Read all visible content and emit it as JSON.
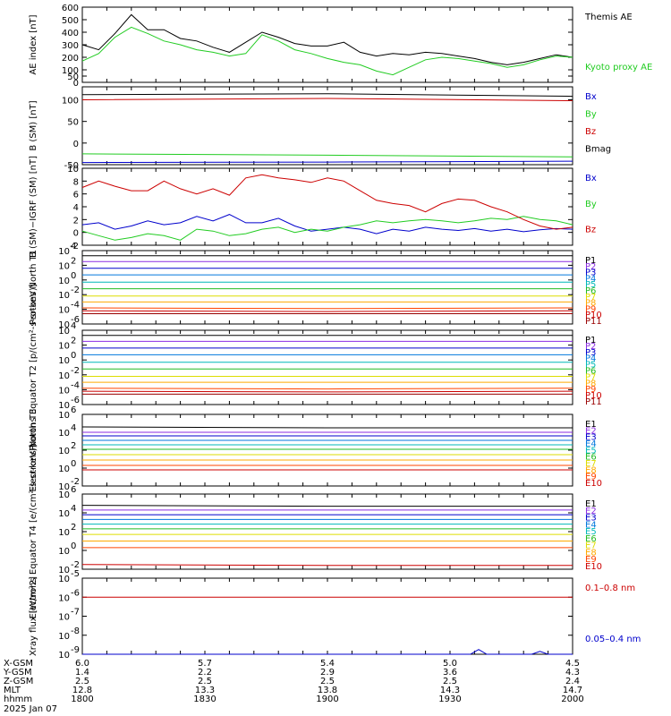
{
  "figure": {
    "date_label": "2025 Jan 07",
    "colors": {
      "black": "#000000",
      "blue": "#0000cc",
      "green": "#22cc22",
      "red": "#cc0000"
    }
  },
  "chart_data": [
    {
      "id": "ae",
      "type": "line",
      "ylabel": "AE index [nT]",
      "ylim": [
        0,
        600
      ],
      "yticks": [
        {
          "v": 0,
          "label": "0"
        },
        {
          "v": 50,
          "label": "50"
        },
        {
          "v": 100,
          "label": "100"
        },
        {
          "v": 200,
          "label": "200"
        },
        {
          "v": 300,
          "label": "300"
        },
        {
          "v": 400,
          "label": "400"
        },
        {
          "v": 500,
          "label": "500"
        },
        {
          "v": 600,
          "label": "600"
        }
      ],
      "x": [
        0,
        4,
        8,
        12,
        16,
        20,
        24,
        28,
        32,
        36,
        40,
        44,
        48,
        52,
        56,
        60,
        64,
        68,
        72,
        76,
        80,
        84,
        88,
        92,
        96,
        100,
        104,
        108,
        112,
        116,
        120
      ],
      "series": [
        {
          "name": "Themis AE",
          "color": "#000000",
          "values": [
            300,
            260,
            390,
            540,
            420,
            420,
            350,
            330,
            280,
            240,
            320,
            400,
            360,
            310,
            290,
            290,
            320,
            240,
            210,
            230,
            220,
            240,
            230,
            210,
            190,
            160,
            140,
            160,
            190,
            220,
            200
          ]
        },
        {
          "name": "Kyoto proxy AE",
          "color": "#22cc22",
          "values": [
            170,
            230,
            360,
            440,
            390,
            330,
            300,
            260,
            240,
            210,
            230,
            380,
            330,
            260,
            230,
            190,
            160,
            140,
            90,
            60,
            120,
            180,
            200,
            190,
            170,
            150,
            120,
            140,
            180,
            210,
            200
          ]
        }
      ]
    },
    {
      "id": "bsm",
      "type": "line",
      "ylabel": "B (SM) [nT]",
      "ylim": [
        -50,
        130
      ],
      "yticks": [
        {
          "v": -50,
          "label": "-50"
        },
        {
          "v": 0,
          "label": "0"
        },
        {
          "v": 50,
          "label": "50"
        },
        {
          "v": 100,
          "label": "100"
        }
      ],
      "x": [
        0,
        60,
        120
      ],
      "series": [
        {
          "name": "Bx",
          "color": "#0000cc",
          "values": [
            -45,
            -44,
            -42
          ]
        },
        {
          "name": "By",
          "color": "#22cc22",
          "values": [
            -25,
            -28,
            -32
          ]
        },
        {
          "name": "Bz",
          "color": "#cc0000",
          "values": [
            100,
            103,
            98
          ]
        },
        {
          "name": "Bmag",
          "color": "#000000",
          "values": [
            112,
            114,
            108
          ]
        }
      ]
    },
    {
      "id": "bigrf",
      "type": "line",
      "ylabel": "B (SM)−IGRF (SM) [nT]",
      "ylim": [
        -2,
        10
      ],
      "yticks": [
        {
          "v": -2,
          "label": "-2"
        },
        {
          "v": 0,
          "label": "0"
        },
        {
          "v": 2,
          "label": "2"
        },
        {
          "v": 4,
          "label": "4"
        },
        {
          "v": 6,
          "label": "6"
        },
        {
          "v": 8,
          "label": "8"
        },
        {
          "v": 10,
          "label": "10"
        }
      ],
      "x": [
        0,
        4,
        8,
        12,
        16,
        20,
        24,
        28,
        32,
        36,
        40,
        44,
        48,
        52,
        56,
        60,
        64,
        68,
        72,
        76,
        80,
        84,
        88,
        92,
        96,
        100,
        104,
        108,
        112,
        116,
        120
      ],
      "series": [
        {
          "name": "Bx",
          "color": "#0000cc",
          "values": [
            1.2,
            1.5,
            0.5,
            1.0,
            1.8,
            1.2,
            1.5,
            2.5,
            1.8,
            2.8,
            1.5,
            1.5,
            2.2,
            1.0,
            0.2,
            0.5,
            0.8,
            0.5,
            -0.2,
            0.5,
            0.2,
            0.8,
            0.5,
            0.3,
            0.6,
            0.2,
            0.5,
            0.1,
            0.4,
            0.6,
            0.5
          ]
        },
        {
          "name": "By",
          "color": "#22cc22",
          "values": [
            0.2,
            -0.5,
            -1.2,
            -0.8,
            -0.2,
            -0.5,
            -1.2,
            0.5,
            0.2,
            -0.5,
            -0.2,
            0.5,
            0.8,
            0.0,
            0.5,
            0.2,
            0.8,
            1.2,
            1.8,
            1.5,
            1.8,
            2.0,
            1.8,
            1.5,
            1.8,
            2.2,
            2.0,
            2.5,
            2.0,
            1.8,
            1.2
          ]
        },
        {
          "name": "Bz",
          "color": "#cc0000",
          "values": [
            7.0,
            8.0,
            7.2,
            6.5,
            6.5,
            8.0,
            6.8,
            6.0,
            6.8,
            5.8,
            8.5,
            9.0,
            8.5,
            8.2,
            7.8,
            8.5,
            8.0,
            6.5,
            5.0,
            4.5,
            4.2,
            3.2,
            4.5,
            5.2,
            5.0,
            4.0,
            3.2,
            2.0,
            1.0,
            0.5,
            0.8
          ]
        }
      ]
    },
    {
      "id": "p1",
      "type": "line",
      "ylabel": "Protons North T1",
      "scale": "log",
      "ylim_exp": [
        -6,
        4
      ],
      "ytick_exps": [
        -6,
        -4,
        -2,
        0,
        2,
        4
      ],
      "x": [
        0,
        60,
        120
      ],
      "series": [
        {
          "name": "P1",
          "color": "#000000",
          "values_exp": [
            3.3,
            3.3,
            3.3
          ]
        },
        {
          "name": "P2",
          "color": "#8a2be2",
          "values_exp": [
            2.5,
            2.5,
            2.5
          ]
        },
        {
          "name": "P3",
          "color": "#0000cc",
          "values_exp": [
            1.6,
            1.6,
            1.6
          ]
        },
        {
          "name": "P4",
          "color": "#0077dd",
          "values_exp": [
            0.7,
            0.7,
            0.7
          ]
        },
        {
          "name": "P5",
          "color": "#00b8b8",
          "values_exp": [
            -0.3,
            -0.3,
            -0.3
          ]
        },
        {
          "name": "P6",
          "color": "#22bb22",
          "values_exp": [
            -1.2,
            -1.2,
            -1.2
          ]
        },
        {
          "name": "P7",
          "color": "#dddd00",
          "values_exp": [
            -2.2,
            -2.2,
            -2.2
          ]
        },
        {
          "name": "P8",
          "color": "#ffaa00",
          "values_exp": [
            -3.0,
            -3.0,
            -3.0
          ]
        },
        {
          "name": "P9",
          "color": "#ff4400",
          "values_exp": [
            -3.8,
            -3.9,
            -3.8
          ]
        },
        {
          "name": "P10",
          "color": "#cc0000",
          "values_exp": [
            -4.2,
            -4.3,
            -4.2
          ]
        },
        {
          "name": "P11",
          "color": "#990000",
          "values_exp": [
            -4.6,
            -4.6,
            -4.6
          ]
        }
      ]
    },
    {
      "id": "p2",
      "type": "line",
      "ylabel": "Protons Equator T2 [p/(cm²-s-sr-keV)]",
      "scale": "log",
      "ylim_exp": [
        -6,
        4
      ],
      "ytick_exps": [
        -6,
        -4,
        -2,
        0,
        2,
        4
      ],
      "x": [
        0,
        60,
        120
      ],
      "series": [
        {
          "name": "P1",
          "color": "#000000",
          "values_exp": [
            3.3,
            3.3,
            3.3
          ]
        },
        {
          "name": "P2",
          "color": "#8a2be2",
          "values_exp": [
            2.5,
            2.5,
            2.5
          ]
        },
        {
          "name": "P3",
          "color": "#0000cc",
          "values_exp": [
            1.6,
            1.6,
            1.6
          ]
        },
        {
          "name": "P4",
          "color": "#0077dd",
          "values_exp": [
            0.7,
            0.7,
            0.7
          ]
        },
        {
          "name": "P5",
          "color": "#00b8b8",
          "values_exp": [
            -0.3,
            -0.3,
            -0.3
          ]
        },
        {
          "name": "P6",
          "color": "#22bb22",
          "values_exp": [
            -1.2,
            -1.2,
            -1.2
          ]
        },
        {
          "name": "P7",
          "color": "#dddd00",
          "values_exp": [
            -2.2,
            -2.2,
            -2.2
          ]
        },
        {
          "name": "P8",
          "color": "#ffaa00",
          "values_exp": [
            -3.0,
            -3.0,
            -3.0
          ]
        },
        {
          "name": "P9",
          "color": "#ff4400",
          "values_exp": [
            -3.8,
            -3.9,
            -3.8
          ]
        },
        {
          "name": "P10",
          "color": "#cc0000",
          "values_exp": [
            -4.2,
            -4.3,
            -4.2
          ]
        },
        {
          "name": "P11",
          "color": "#990000",
          "values_exp": [
            -4.6,
            -4.6,
            -4.6
          ]
        }
      ]
    },
    {
      "id": "e1",
      "type": "line",
      "ylabel": "Electrons North T3",
      "scale": "log",
      "ylim_exp": [
        -2,
        6
      ],
      "ytick_exps": [
        -2,
        0,
        2,
        4,
        6
      ],
      "x": [
        0,
        60,
        120
      ],
      "series": [
        {
          "name": "E1",
          "color": "#000000",
          "values_exp": [
            4.6,
            4.5,
            4.5
          ]
        },
        {
          "name": "E2",
          "color": "#8a2be2",
          "values_exp": [
            4.0,
            4.0,
            4.0
          ]
        },
        {
          "name": "E3",
          "color": "#0000cc",
          "values_exp": [
            3.6,
            3.6,
            3.6
          ]
        },
        {
          "name": "E4",
          "color": "#0077dd",
          "values_exp": [
            3.1,
            3.1,
            3.1
          ]
        },
        {
          "name": "E5",
          "color": "#00b8b8",
          "values_exp": [
            2.6,
            2.6,
            2.6
          ]
        },
        {
          "name": "E6",
          "color": "#22bb22",
          "values_exp": [
            2.1,
            2.1,
            2.1
          ]
        },
        {
          "name": "E7",
          "color": "#dddd00",
          "values_exp": [
            1.5,
            1.5,
            1.5
          ]
        },
        {
          "name": "E8",
          "color": "#ffaa00",
          "values_exp": [
            0.9,
            0.9,
            0.9
          ]
        },
        {
          "name": "E9",
          "color": "#ff4400",
          "values_exp": [
            0.3,
            0.3,
            0.3
          ]
        },
        {
          "name": "E10",
          "color": "#cc0000",
          "values_exp": [
            -0.2,
            -0.2,
            -0.2
          ]
        }
      ]
    },
    {
      "id": "e2",
      "type": "line",
      "ylabel": "Electrons Equator T4 [e/(cm²-s-sr-keV)]",
      "scale": "log",
      "ylim_exp": [
        -2,
        6
      ],
      "ytick_exps": [
        -2,
        0,
        2,
        4,
        6
      ],
      "x": [
        0,
        60,
        120
      ],
      "series": [
        {
          "name": "E1",
          "color": "#000000",
          "values_exp": [
            4.8,
            4.7,
            4.7
          ]
        },
        {
          "name": "E2",
          "color": "#8a2be2",
          "values_exp": [
            4.3,
            4.3,
            4.3
          ]
        },
        {
          "name": "E3",
          "color": "#0000cc",
          "values_exp": [
            3.8,
            3.8,
            3.8
          ]
        },
        {
          "name": "E4",
          "color": "#0077dd",
          "values_exp": [
            3.3,
            3.3,
            3.3
          ]
        },
        {
          "name": "E5",
          "color": "#00b8b8",
          "values_exp": [
            2.8,
            2.8,
            2.8
          ]
        },
        {
          "name": "E6",
          "color": "#22bb22",
          "values_exp": [
            2.3,
            2.3,
            2.3
          ]
        },
        {
          "name": "E7",
          "color": "#dddd00",
          "values_exp": [
            1.7,
            1.7,
            1.7
          ]
        },
        {
          "name": "E8",
          "color": "#ffaa00",
          "values_exp": [
            1.0,
            1.0,
            1.0
          ]
        },
        {
          "name": "E9",
          "color": "#ff4400",
          "values_exp": [
            0.3,
            0.3,
            0.3
          ]
        },
        {
          "name": "E10",
          "color": "#cc0000",
          "values_exp": [
            -1.5,
            -1.6,
            -1.6
          ]
        }
      ]
    },
    {
      "id": "xray",
      "type": "line",
      "ylabel": "Xray flux [W/m²2]",
      "scale": "log",
      "ylim_exp": [
        -9,
        -5
      ],
      "ytick_exps": [
        -9,
        -8,
        -7,
        -6,
        -5
      ],
      "x": [
        0,
        10,
        20,
        30,
        40,
        50,
        60,
        70,
        80,
        90,
        95,
        97,
        99,
        110,
        112,
        114,
        120
      ],
      "series": [
        {
          "name": "0.1–0.8 nm",
          "color": "#cc0000",
          "values_exp": [
            -6.0,
            -6.0,
            -6.0,
            -6.0,
            -6.0,
            -6.0,
            -6.0,
            -6.0,
            -6.0,
            -6.0,
            -6.0,
            -6.0,
            -6.0,
            -6.0,
            -6.0,
            -6.0,
            -6.0
          ]
        },
        {
          "name": "0.05–0.4 nm",
          "color": "#0000cc",
          "values_exp": [
            -9.0,
            -9.0,
            -9.0,
            -9.0,
            -9.0,
            -9.0,
            -9.0,
            -9.0,
            -9.0,
            -9.0,
            -9.0,
            -8.75,
            -9.0,
            -9.0,
            -8.85,
            -9.0,
            -9.0
          ]
        }
      ]
    }
  ],
  "orbit": {
    "row_labels": [
      "X-GSM",
      "Y-GSM",
      "Z-GSM",
      "MLT",
      "hhmm"
    ],
    "columns": [
      {
        "x": 0,
        "vals": [
          "6.0",
          "1.4",
          "2.5",
          "12.8",
          "1800"
        ]
      },
      {
        "x": 30,
        "vals": [
          "5.7",
          "2.2",
          "2.5",
          "13.3",
          "1830"
        ]
      },
      {
        "x": 60,
        "vals": [
          "5.4",
          "2.9",
          "2.5",
          "13.8",
          "1900"
        ]
      },
      {
        "x": 90,
        "vals": [
          "5.0",
          "3.6",
          "2.5",
          "14.3",
          "1930"
        ]
      },
      {
        "x": 120,
        "vals": [
          "4.5",
          "4.3",
          "2.4",
          "14.7",
          "2000"
        ]
      }
    ]
  }
}
